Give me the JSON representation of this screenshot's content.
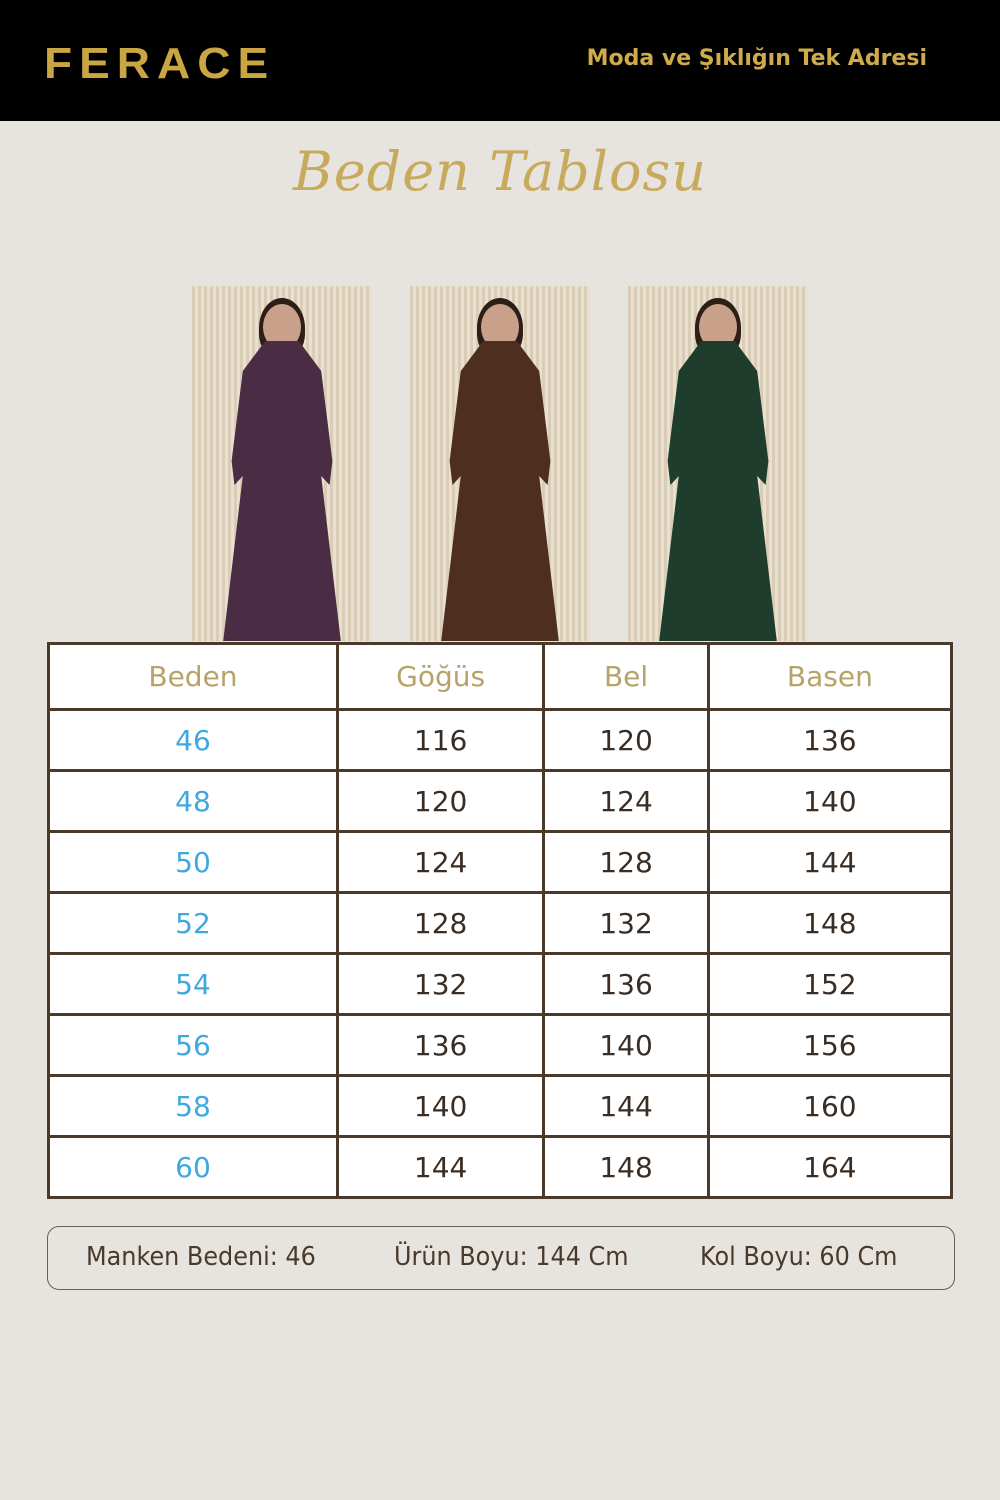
{
  "header": {
    "brand": "FERACE",
    "tagline": "Moda ve Şıklığın Tek Adresi"
  },
  "title": "Beden Tablosu",
  "colors": {
    "gold": "#c9a544",
    "size_blue": "#3ea9e0",
    "border_brown": "#4a3a2c",
    "background": "#e7e4e0"
  },
  "photos": [
    {
      "dress_color": "#4a2c44"
    },
    {
      "dress_color": "#4e2e1e"
    },
    {
      "dress_color": "#1f3d2c"
    }
  ],
  "table": {
    "headers": [
      "Beden",
      "Göğüs",
      "Bel",
      "Basen"
    ],
    "rows": [
      [
        "46",
        "116",
        "120",
        "136"
      ],
      [
        "48",
        "120",
        "124",
        "140"
      ],
      [
        "50",
        "124",
        "128",
        "144"
      ],
      [
        "52",
        "128",
        "132",
        "148"
      ],
      [
        "54",
        "132",
        "136",
        "152"
      ],
      [
        "56",
        "136",
        "140",
        "156"
      ],
      [
        "58",
        "140",
        "144",
        "160"
      ],
      [
        "60",
        "144",
        "148",
        "164"
      ]
    ]
  },
  "info": {
    "model_size": "Manken Bedeni: 46",
    "product_length": "Ürün Boyu: 144 Cm",
    "sleeve_length": "Kol Boyu: 60 Cm"
  }
}
